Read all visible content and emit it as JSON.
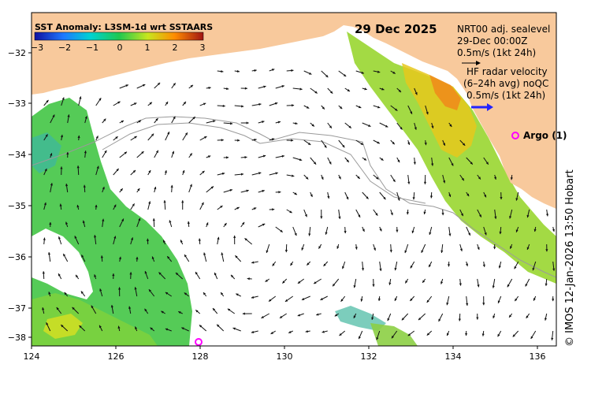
{
  "map": {
    "date_label": "29 Dec 2025",
    "colorbar": {
      "title": "SST Anomaly: L3SM-1d wrt SSTAARS",
      "ticks": [
        "−3",
        "−2",
        "−1",
        "0",
        "1",
        "2",
        "3"
      ],
      "range": [
        -3,
        3
      ]
    },
    "legend": {
      "nrt_line1": "NRT00 adj. sealevel",
      "nrt_line2": "29-Dec 00:00Z",
      "nrt_line3": "0.5m/s (1kt 24h)",
      "hf_line1": "HF radar velocity",
      "hf_line2": "(6–24h avg) noQC",
      "hf_line3": "0.5m/s (1kt 24h)"
    },
    "argo_label": "Argo (1)",
    "argo_marker": "O",
    "credit": "© IMOS 12-Jan-2026 13:50 Hobart",
    "lat_ticks": [
      "−32",
      "−33",
      "−34",
      "−35",
      "−36",
      "−37",
      "−38"
    ],
    "lon_ticks": [
      "124",
      "126",
      "128",
      "130",
      "132",
      "134",
      "136"
    ],
    "colors": {
      "land": "#f8c99c",
      "argo": "#ff00ff",
      "hf_arrow": "#2222ff",
      "shelf": "#9a9a9a"
    }
  }
}
